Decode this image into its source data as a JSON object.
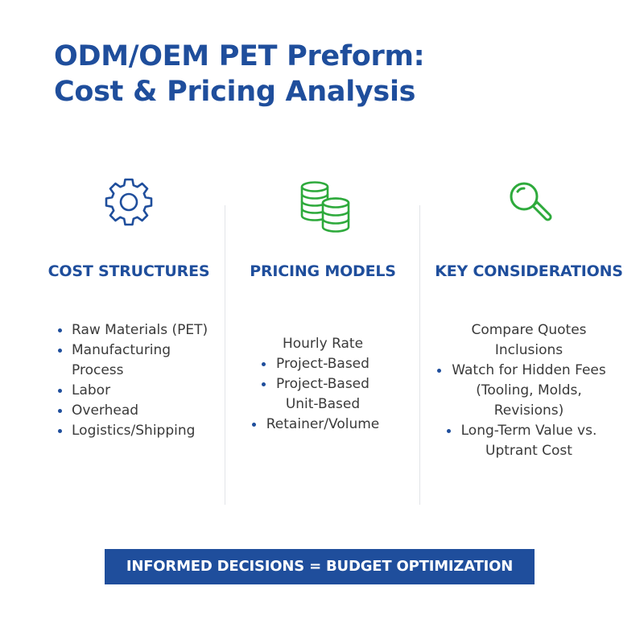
{
  "title": {
    "line1": "ODM/OEM PET Preform:",
    "line2": "Cost & Pricing Analysis"
  },
  "columns": [
    {
      "icon": "gear-icon",
      "heading": "COST STRUCTURES",
      "items": [
        {
          "text": "Raw Materials (PET)",
          "bullet": true
        },
        {
          "text": "Manufacturing",
          "bullet": true
        },
        {
          "text": "Process",
          "bullet": false
        },
        {
          "text": "Labor",
          "bullet": true
        },
        {
          "text": "Overhead",
          "bullet": true
        },
        {
          "text": "Logistics/Shipping",
          "bullet": true
        }
      ]
    },
    {
      "icon": "coins-icon",
      "heading": "PRICING MODELS",
      "items": [
        {
          "text": "Hourly Rate",
          "bullet": false
        },
        {
          "text": "Project-Based",
          "bullet": true
        },
        {
          "text": "Project-Based",
          "bullet": true
        },
        {
          "text": "Unit-Based",
          "bullet": false
        },
        {
          "text": "Retainer/Volume",
          "bullet": true
        }
      ]
    },
    {
      "icon": "magnifier-icon",
      "heading": "KEY CONSIDERATIONS",
      "items": [
        {
          "text": "Compare Quotes",
          "bullet": false
        },
        {
          "text": "Inclusions",
          "bullet": false
        },
        {
          "text": "Watch for Hidden Fees",
          "bullet": true
        },
        {
          "text": "(Tooling, Molds,",
          "bullet": false
        },
        {
          "text": "Revisions)",
          "bullet": false
        },
        {
          "text": "Long-Term Value vs.",
          "bullet": true
        },
        {
          "text": "Uptrant Cost",
          "bullet": false
        }
      ]
    }
  ],
  "banner": "INFORMED DECISIONS = BUDGET OPTIMIZATION",
  "colors": {
    "primary_blue": "#1f4e9c",
    "icon_green": "#2eaa3c",
    "text": "#3a3a3a"
  }
}
